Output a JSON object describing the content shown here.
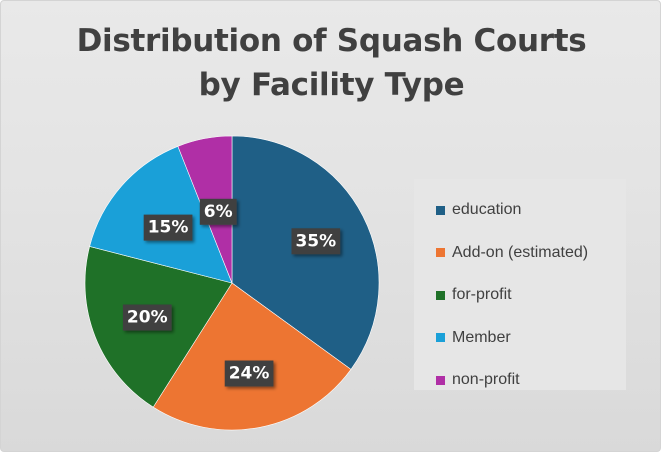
{
  "chart_data": {
    "type": "pie",
    "title": "Distribution of Squash Courts by Facility Type",
    "title_lines": [
      "Distribution of Squash Courts",
      "by Facility Type"
    ],
    "categories": [
      "education",
      "Add-on (estimated)",
      "for-profit",
      "Member",
      "non-profit"
    ],
    "values": [
      35,
      24,
      20,
      15,
      6
    ],
    "labels": [
      "35%",
      "24%",
      "20%",
      "15%",
      "6%"
    ],
    "colors": [
      "#1f5f86",
      "#ed7532",
      "#1f7128",
      "#1aa0d8",
      "#b02fa6"
    ],
    "legend_position": "right",
    "start": "12 o'clock",
    "direction": "clockwise"
  }
}
